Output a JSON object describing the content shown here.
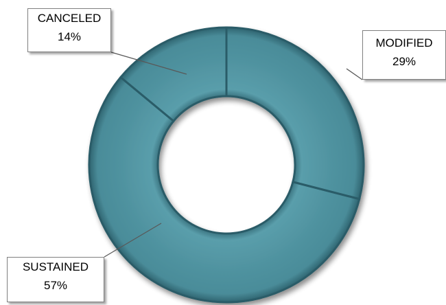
{
  "chart_data": {
    "type": "pie",
    "subtype": "doughnut",
    "categories": [
      "MODIFIED",
      "SUSTAINED",
      "CANCELED"
    ],
    "values": [
      29,
      57,
      14
    ],
    "value_labels": [
      "29%",
      "57%",
      "14%"
    ],
    "title": "",
    "legend": "none",
    "colors": {
      "fill": "#4f929f",
      "fill_light": "#6fb1bd",
      "fill_dark": "#2f6470",
      "leader": "#595959"
    }
  }
}
